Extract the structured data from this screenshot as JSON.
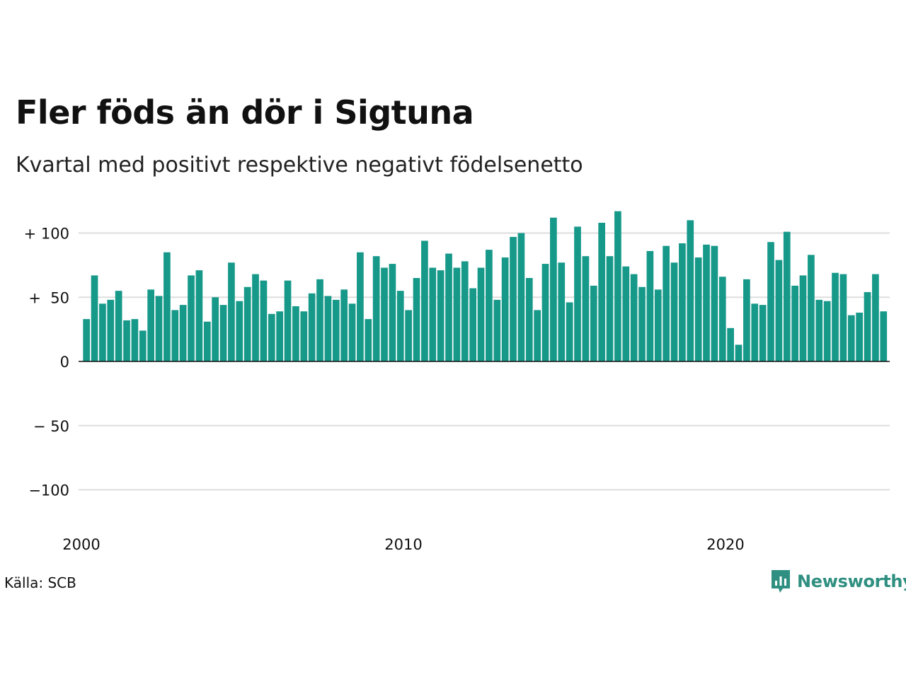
{
  "title": "Fler föds än dör i Sigtuna",
  "subtitle": "Kvartal med positivt respektive negativt födelsenetto",
  "source": "Källa: SCB",
  "brand": {
    "name": "Newsworthy",
    "icon": "newsworthy-logo-icon",
    "color": "#2f8f80"
  },
  "colors": {
    "bar": "#17998a",
    "grid": "#dddddd",
    "axis": "#111111"
  },
  "chart_data": {
    "type": "bar",
    "title": "Fler föds än dör i Sigtuna",
    "subtitle": "Kvartal med positivt respektive negativt födelsenetto",
    "xlabel": "",
    "ylabel": "",
    "ylim": [
      -120,
      120
    ],
    "grid": true,
    "legend": "none",
    "x_start": 2000.0,
    "x_step": 0.25,
    "x_ticks": [
      {
        "value": 2000,
        "label": "2000"
      },
      {
        "value": 2010,
        "label": "2010"
      },
      {
        "value": 2020,
        "label": "2020"
      }
    ],
    "y_ticks": [
      {
        "value": 100,
        "label": "+ 100"
      },
      {
        "value": 50,
        "label": "+  50"
      },
      {
        "value": 0,
        "label": "0"
      },
      {
        "value": -50,
        "label": "− 50"
      },
      {
        "value": -100,
        "label": "−100"
      }
    ],
    "values": [
      33,
      67,
      45,
      48,
      55,
      32,
      33,
      24,
      56,
      51,
      85,
      40,
      44,
      67,
      71,
      31,
      50,
      44,
      77,
      47,
      58,
      68,
      63,
      37,
      39,
      63,
      43,
      39,
      53,
      64,
      51,
      48,
      56,
      45,
      85,
      33,
      82,
      73,
      76,
      55,
      40,
      65,
      94,
      73,
      71,
      84,
      73,
      78,
      57,
      73,
      87,
      48,
      81,
      97,
      100,
      65,
      40,
      76,
      112,
      77,
      46,
      105,
      82,
      59,
      108,
      82,
      117,
      74,
      68,
      58,
      86,
      56,
      90,
      77,
      92,
      110,
      81,
      91,
      90,
      66,
      26,
      13,
      64,
      45,
      44,
      93,
      79,
      101,
      59,
      67,
      83,
      48,
      47,
      69,
      68,
      36,
      38,
      54,
      68,
      39
    ]
  }
}
